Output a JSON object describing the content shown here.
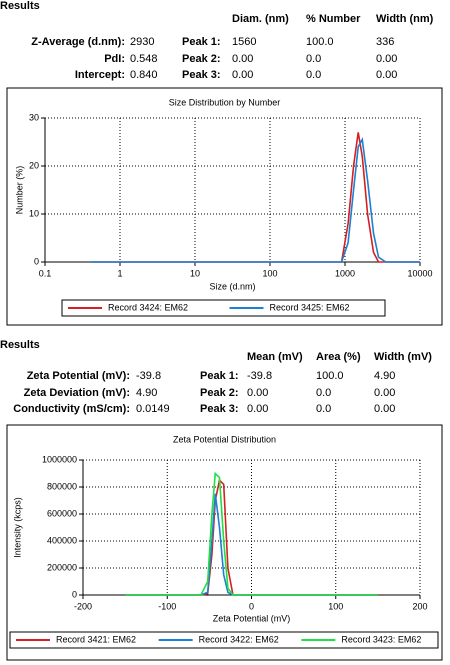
{
  "size_results": {
    "heading": "Results",
    "columns": [
      "Diam. (nm)",
      "% Number",
      "Width (nm)"
    ],
    "summary": [
      {
        "label": "Z-Average (d.nm):",
        "value": "2930",
        "color": "#e00000"
      },
      {
        "label": "PdI:",
        "value": "0.548",
        "color": "#e00000"
      },
      {
        "label": "Intercept:",
        "value": "0.840"
      }
    ],
    "peaks": [
      [
        "Peak 1:",
        "1560",
        "100.0",
        "336"
      ],
      [
        "Peak 2:",
        "0.00",
        "0.0",
        "0.00"
      ],
      [
        "Peak 3:",
        "0.00",
        "0.0",
        "0.00"
      ]
    ]
  },
  "zeta_results": {
    "heading": "Results",
    "columns": [
      "Mean (mV)",
      "Area (%)",
      "Width (mV)"
    ],
    "summary": [
      {
        "label": "Zeta Potential (mV):",
        "value": "-39.8",
        "color": "#e00000"
      },
      {
        "label": "Zeta Deviation (mV):",
        "value": "4.90"
      },
      {
        "label": "Conductivity (mS/cm):",
        "value": "0.0149"
      }
    ],
    "peaks": [
      [
        "Peak 1:",
        "-39.8",
        "100.0",
        "4.90"
      ],
      [
        "Peak 2:",
        "0.00",
        "0.0",
        "0.00"
      ],
      [
        "Peak 3:",
        "0.00",
        "0.0",
        "0.00"
      ]
    ]
  },
  "chart_data": [
    {
      "type": "line",
      "title": "Size Distribution by Number",
      "x_label": "Size (d.nm)",
      "y_label": "Number (%)",
      "xscale": "log",
      "xlim": [
        0.1,
        10000
      ],
      "xticks": [
        0.1,
        1,
        10,
        100,
        1000,
        10000
      ],
      "ylim": [
        0,
        30
      ],
      "yticks": [
        0,
        10,
        20,
        30
      ],
      "grid": true,
      "x": [
        0.4,
        700,
        900,
        1100,
        1300,
        1500,
        1700,
        2000,
        2400,
        2800,
        3500,
        10000
      ],
      "series": [
        {
          "name": "Record 3424: EM62",
          "color": "#d42020",
          "values": [
            0,
            0,
            0,
            8,
            20,
            27,
            22,
            10,
            2,
            0,
            0,
            0
          ]
        },
        {
          "name": "Record 3425: EM62",
          "color": "#1f7fd0",
          "values": [
            0,
            0,
            0,
            4,
            15,
            24,
            25.5,
            17,
            6,
            1,
            0,
            0
          ]
        }
      ]
    },
    {
      "type": "line",
      "title": "Zeta Potential Distribution",
      "x_label": "Zeta Potential (mV)",
      "y_label": "Intensity (kcps)",
      "xlim": [
        -200,
        200
      ],
      "xticks": [
        -200,
        -100,
        0,
        100,
        200
      ],
      "ylim": [
        0,
        1000000
      ],
      "yticks": [
        0,
        200000,
        400000,
        600000,
        800000,
        1000000
      ],
      "grid": true,
      "x": [
        -150,
        -60,
        -52,
        -47,
        -43,
        -38,
        -33,
        -28,
        -22,
        150
      ],
      "series": [
        {
          "name": "Record 3421: EM62",
          "color": "#d42020",
          "values": [
            0,
            0,
            10000,
            300000,
            700000,
            850000,
            820000,
            200000,
            0,
            0
          ]
        },
        {
          "name": "Record 3422: EM62",
          "color": "#1f7fd0",
          "values": [
            0,
            0,
            20000,
            400000,
            750000,
            500000,
            150000,
            20000,
            0,
            0
          ]
        },
        {
          "name": "Record 3423: EM62",
          "color": "#22dd44",
          "values": [
            0,
            0,
            100000,
            600000,
            900000,
            870000,
            400000,
            50000,
            0,
            0
          ]
        }
      ]
    }
  ]
}
